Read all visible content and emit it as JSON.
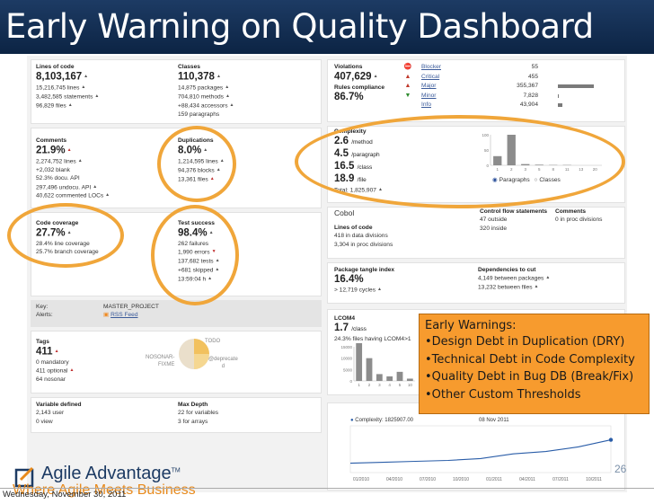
{
  "title": "Early Warning on Quality Dashboard",
  "lines_of_code": {
    "label": "Lines of code",
    "value": "8,103,167",
    "l1": "15,216,745 lines",
    "l2": "3,482,585 statements",
    "l3": "96,829 files"
  },
  "classes": {
    "label": "Classes",
    "value": "110,378",
    "l1": "14,875 packages",
    "l2": "704,810 methods",
    "l3": "+88,434 accessors",
    "l4": "159 paragraphs"
  },
  "comments": {
    "label": "Comments",
    "value": "21.9%",
    "l1": "2,274,752 lines",
    "l2": "+2,032 blank",
    "l3": "52.3% docu. API",
    "l4": "297,496 undocu. API",
    "l5": "40,622 commented LOCs"
  },
  "duplications": {
    "label": "Duplications",
    "value": "8.0%",
    "l1": "1,214,595 lines",
    "l2": "94,376 blocks",
    "l3": "13,361 files"
  },
  "code_coverage": {
    "label": "Code coverage",
    "value": "27.7%",
    "l1": "28.4% line coverage",
    "l2": "25.7% branch coverage"
  },
  "test_success": {
    "label": "Test success",
    "value": "98.4%",
    "l1": "262 failures",
    "l2": "1,990 errors",
    "l3": "137,682 tests",
    "l4": "+681 skipped",
    "l5": "13:59:04 h"
  },
  "violations": {
    "label": "Violations",
    "value": "407,629",
    "rules_label": "Rules compliance",
    "rules_value": "86.7%",
    "rows": [
      {
        "icon": "⛔",
        "name": "Blocker",
        "count": "55",
        "color": "#c0392b",
        "share": 0.0
      },
      {
        "icon": "▲",
        "name": "Critical",
        "count": "455",
        "color": "#c0392b",
        "share": 0.01
      },
      {
        "icon": "▲",
        "name": "Major",
        "count": "355,367",
        "color": "#c0392b",
        "share": 0.87
      },
      {
        "icon": "▼",
        "name": "Minor",
        "count": "7,828",
        "color": "#2e8b2e",
        "share": 0.02
      },
      {
        "icon": "",
        "name": "Info",
        "count": "43,904",
        "color": "#2e8b2e",
        "share": 0.1
      }
    ]
  },
  "complexity": {
    "label": "Complexity",
    "method": "2.6",
    "method_u": "/method",
    "paragraph": "4.5",
    "paragraph_u": "/paragraph",
    "class": "16.5",
    "class_u": "/class",
    "file": "18.9",
    "file_u": "/file",
    "total": "Total: 1,825,907",
    "radio_a": "Paragraphs",
    "radio_b": "Classes"
  },
  "cobol": {
    "label": "Cobol",
    "loc_label": "Lines of code",
    "l1": "418 in data divisions",
    "l2": "3,304 in proc divisions",
    "cfs_label": "Control flow statements",
    "cfs1": "47 outside",
    "cfs2": "320 inside",
    "cmt_label": "Comments",
    "cmt1": "0 in proc divisions"
  },
  "tangle": {
    "label": "Package tangle index",
    "value": "16.4%",
    "l1": "> 12,719 cycles",
    "dep_label": "Dependencies to cut",
    "dep1": "4,149 between packages",
    "dep2": "13,232 between files"
  },
  "key": {
    "label": "Key:",
    "value": "MASTER_PROJECT",
    "alerts_label": "Alerts:",
    "alerts_value": "RSS Feed"
  },
  "lcom4": {
    "label": "LCOM4",
    "value": "1.7",
    "unit": "/class",
    "l1": "24.3% files having LCOM4>1"
  },
  "tags": {
    "label": "Tags",
    "value": "411",
    "l1": "0 mandatory",
    "l2": "411 optional",
    "l3": "64 nosonar",
    "pie1": "NOSONAR-",
    "pie2": "FIXME",
    "pie3": "TODO",
    "pie4": "@deprecate",
    "pie5": "d"
  },
  "variable": {
    "label": "Variable defined",
    "l1": "2,143 user",
    "l2": "0 view"
  },
  "maxdepth": {
    "label": "Max Depth",
    "l1": "22 for variables",
    "l2": "3 for arrays"
  },
  "timeline": {
    "legend": "Complexity: 1825907.00",
    "date": "08 Nov 2011",
    "xticks": [
      "01/2010",
      "04/2010",
      "07/2010",
      "10/2010",
      "01/2011",
      "04/2011",
      "07/2011",
      "10/2011"
    ]
  },
  "callout": {
    "title": "Early Warnings:",
    "items": [
      "Design Debt in Duplication (DRY)",
      "Technical Debt in Code Complexity",
      "Quality Debt in Bug DB (Break/Fix)",
      "Other Custom Thresholds"
    ]
  },
  "logo": {
    "name": "Agile Advantage",
    "tm": "TM",
    "tagline": "Where Agile Meets Business"
  },
  "page_number": "26",
  "date": "Wednesday, November 30, 2011",
  "colors": {
    "title_bar": "#1d3b64",
    "callout": "#f79b2e",
    "ring": "#f0a63a",
    "tagline": "#e88a1c"
  },
  "chart_data": [
    {
      "type": "bar",
      "name": "complexity-distribution",
      "categories": [
        "1",
        "2",
        "3",
        "5",
        "8",
        "11",
        "13",
        "20"
      ],
      "values": [
        30,
        100,
        4,
        2,
        1,
        1,
        0,
        0
      ],
      "ylim": [
        0,
        100
      ],
      "yticks": [
        "100",
        "50",
        "0"
      ]
    },
    {
      "type": "bar",
      "name": "lcom4-distribution",
      "categories": [
        "1",
        "2",
        "3",
        "4",
        "5",
        "10"
      ],
      "values": [
        17000,
        10000,
        3000,
        2000,
        4000,
        1000
      ],
      "ylim": [
        0,
        15000
      ],
      "yticks": [
        "15000",
        "10000",
        "5000",
        "0"
      ]
    },
    {
      "type": "line",
      "name": "complexity-timeline",
      "x": [
        "01/2010",
        "04/2010",
        "07/2010",
        "10/2010",
        "01/2011",
        "04/2011",
        "07/2011",
        "10/2011",
        "11/2011"
      ],
      "values": [
        0.2,
        0.22,
        0.24,
        0.26,
        0.3,
        0.4,
        0.45,
        0.55,
        0.7
      ]
    }
  ]
}
